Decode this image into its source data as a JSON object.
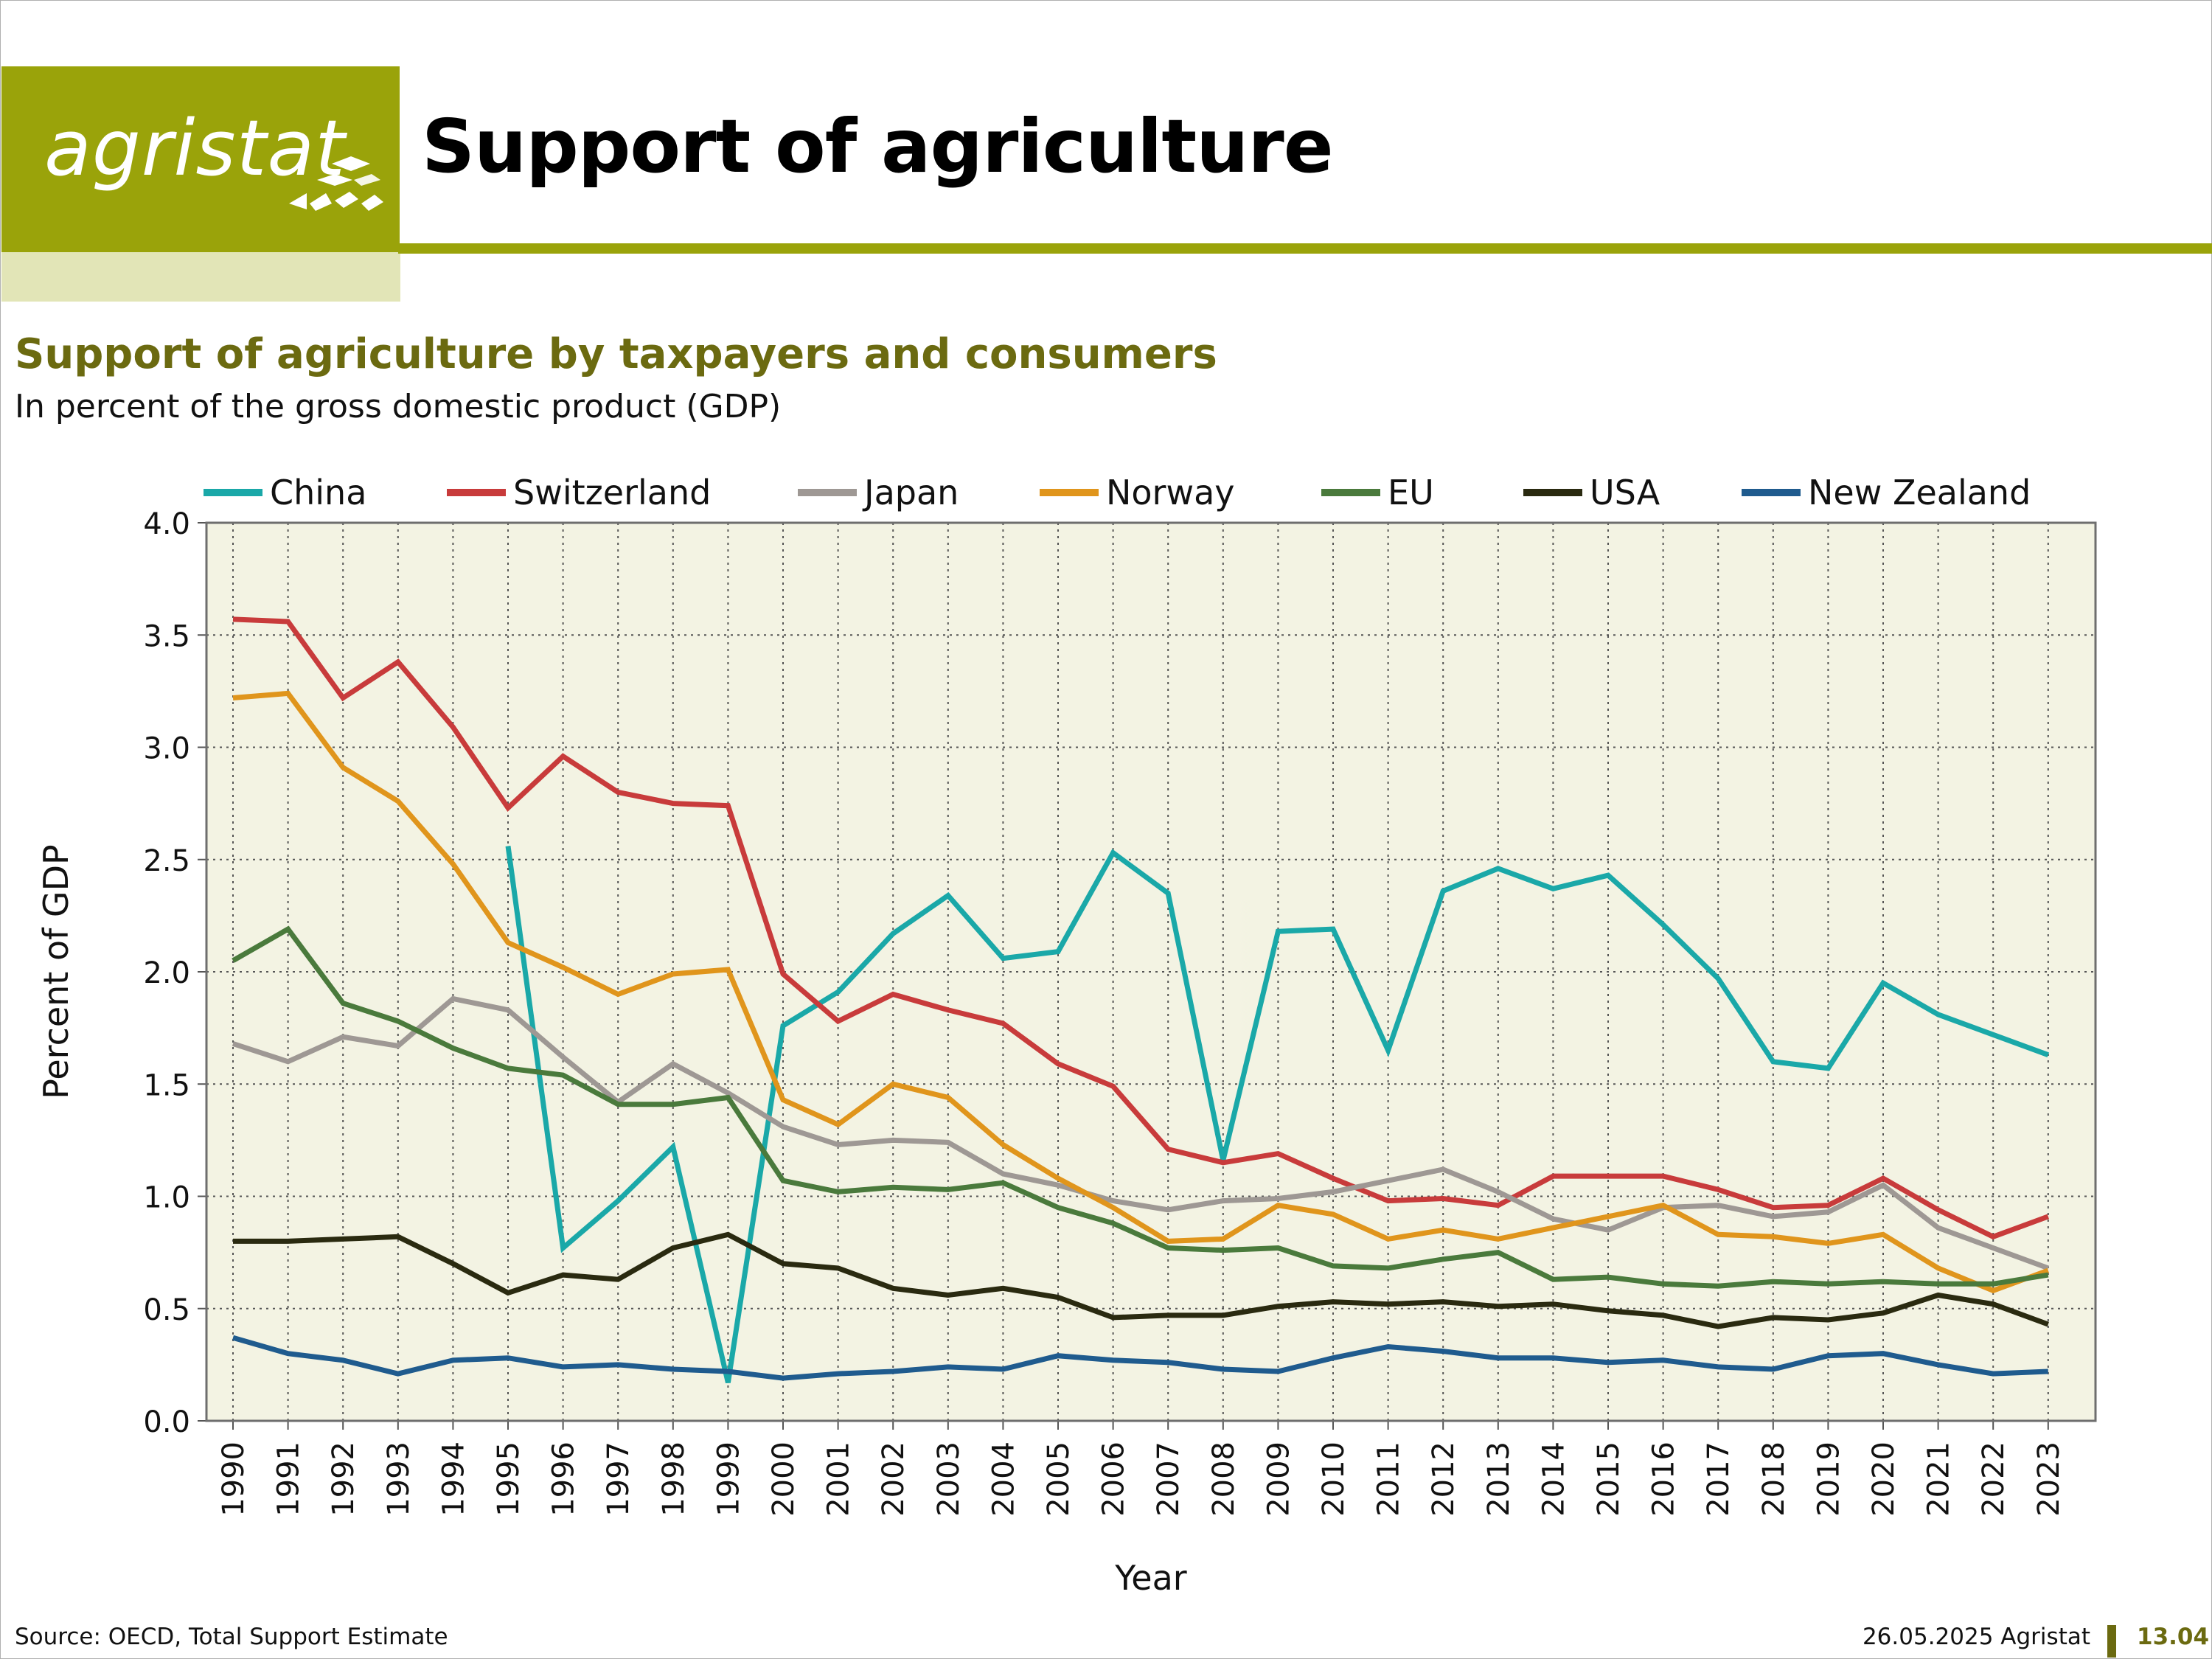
{
  "header": {
    "logo_text": "agristat",
    "title": "Support of agriculture",
    "brand_color": "#9aa30a"
  },
  "footer": {
    "source": "Source: OECD, Total Support Estimate",
    "date_org": "26.05.2025 Agristat",
    "page": "13.04"
  },
  "chart_data": {
    "type": "line",
    "title": "Support of agriculture by taxpayers and consumers",
    "subtitle": "In percent of the gross domestic product (GDP)",
    "xlabel": "Year",
    "ylabel": "Percent of GDP",
    "ylim": [
      0,
      4
    ],
    "yticks": [
      "0.0",
      "0.5",
      "1.0",
      "1.5",
      "2.0",
      "2.5",
      "3.0",
      "3.5",
      "4.0"
    ],
    "grid": true,
    "legend_position": "top",
    "plot_background": "#f3f3e3",
    "categories": [
      "1990",
      "1991",
      "1992",
      "1993",
      "1994",
      "1995",
      "1996",
      "1997",
      "1998",
      "1999",
      "2000",
      "2001",
      "2002",
      "2003",
      "2004",
      "2005",
      "2006",
      "2007",
      "2008",
      "2009",
      "2010",
      "2011",
      "2012",
      "2013",
      "2014",
      "2015",
      "2016",
      "2017",
      "2018",
      "2019",
      "2020",
      "2021",
      "2022",
      "2023"
    ],
    "series": [
      {
        "name": "China",
        "color": "#1aa8a8",
        "values": [
          null,
          null,
          null,
          null,
          null,
          2.56,
          0.77,
          0.98,
          1.22,
          0.17,
          1.76,
          1.91,
          2.17,
          2.34,
          2.06,
          2.09,
          2.53,
          2.35,
          1.16,
          2.18,
          2.19,
          1.65,
          2.36,
          2.46,
          2.37,
          2.43,
          2.21,
          1.97,
          1.6,
          1.57,
          1.95,
          1.81,
          1.72,
          1.63
        ]
      },
      {
        "name": "Switzerland",
        "color": "#c83b3b",
        "values": [
          3.57,
          3.56,
          3.22,
          3.38,
          3.09,
          2.73,
          2.96,
          2.8,
          2.75,
          2.74,
          1.99,
          1.78,
          1.9,
          1.83,
          1.77,
          1.59,
          1.49,
          1.21,
          1.15,
          1.19,
          1.08,
          0.98,
          0.99,
          0.96,
          1.09,
          1.09,
          1.09,
          1.03,
          0.95,
          0.96,
          1.08,
          0.94,
          0.82,
          0.91
        ]
      },
      {
        "name": "Japan",
        "color": "#9e9894",
        "values": [
          1.68,
          1.6,
          1.71,
          1.67,
          1.88,
          1.83,
          1.62,
          1.42,
          1.59,
          1.46,
          1.31,
          1.23,
          1.25,
          1.24,
          1.1,
          1.05,
          0.98,
          0.94,
          0.98,
          0.99,
          1.02,
          1.07,
          1.12,
          1.02,
          0.9,
          0.85,
          0.95,
          0.96,
          0.91,
          0.93,
          1.05,
          0.86,
          0.77,
          0.68
        ]
      },
      {
        "name": "Norway",
        "color": "#e0951c",
        "values": [
          3.22,
          3.24,
          2.91,
          2.76,
          2.48,
          2.13,
          2.02,
          1.9,
          1.99,
          2.01,
          1.43,
          1.32,
          1.5,
          1.44,
          1.23,
          1.08,
          0.95,
          0.8,
          0.81,
          0.96,
          0.92,
          0.81,
          0.85,
          0.81,
          0.86,
          0.91,
          0.96,
          0.83,
          0.82,
          0.79,
          0.83,
          0.68,
          0.58,
          0.67
        ]
      },
      {
        "name": "EU",
        "color": "#4a7a3c",
        "values": [
          2.05,
          2.19,
          1.86,
          1.78,
          1.66,
          1.57,
          1.54,
          1.41,
          1.41,
          1.44,
          1.07,
          1.02,
          1.04,
          1.03,
          1.06,
          0.95,
          0.88,
          0.77,
          0.76,
          0.77,
          0.69,
          0.68,
          0.72,
          0.75,
          0.63,
          0.64,
          0.61,
          0.6,
          0.62,
          0.61,
          0.62,
          0.61,
          0.61,
          0.65
        ]
      },
      {
        "name": "USA",
        "color": "#2a2a10",
        "values": [
          0.8,
          0.8,
          0.81,
          0.82,
          0.7,
          0.57,
          0.65,
          0.63,
          0.77,
          0.83,
          0.7,
          0.68,
          0.59,
          0.56,
          0.59,
          0.55,
          0.46,
          0.47,
          0.47,
          0.51,
          0.53,
          0.52,
          0.53,
          0.51,
          0.52,
          0.49,
          0.47,
          0.42,
          0.46,
          0.45,
          0.48,
          0.56,
          0.52,
          0.43
        ]
      },
      {
        "name": "New Zealand",
        "color": "#1f5b8e",
        "values": [
          0.37,
          0.3,
          0.27,
          0.21,
          0.27,
          0.28,
          0.24,
          0.25,
          0.23,
          0.22,
          0.19,
          0.21,
          0.22,
          0.24,
          0.23,
          0.29,
          0.27,
          0.26,
          0.23,
          0.22,
          0.28,
          0.33,
          0.31,
          0.28,
          0.28,
          0.26,
          0.27,
          0.24,
          0.23,
          0.29,
          0.3,
          0.25,
          0.21,
          0.22
        ]
      }
    ]
  }
}
